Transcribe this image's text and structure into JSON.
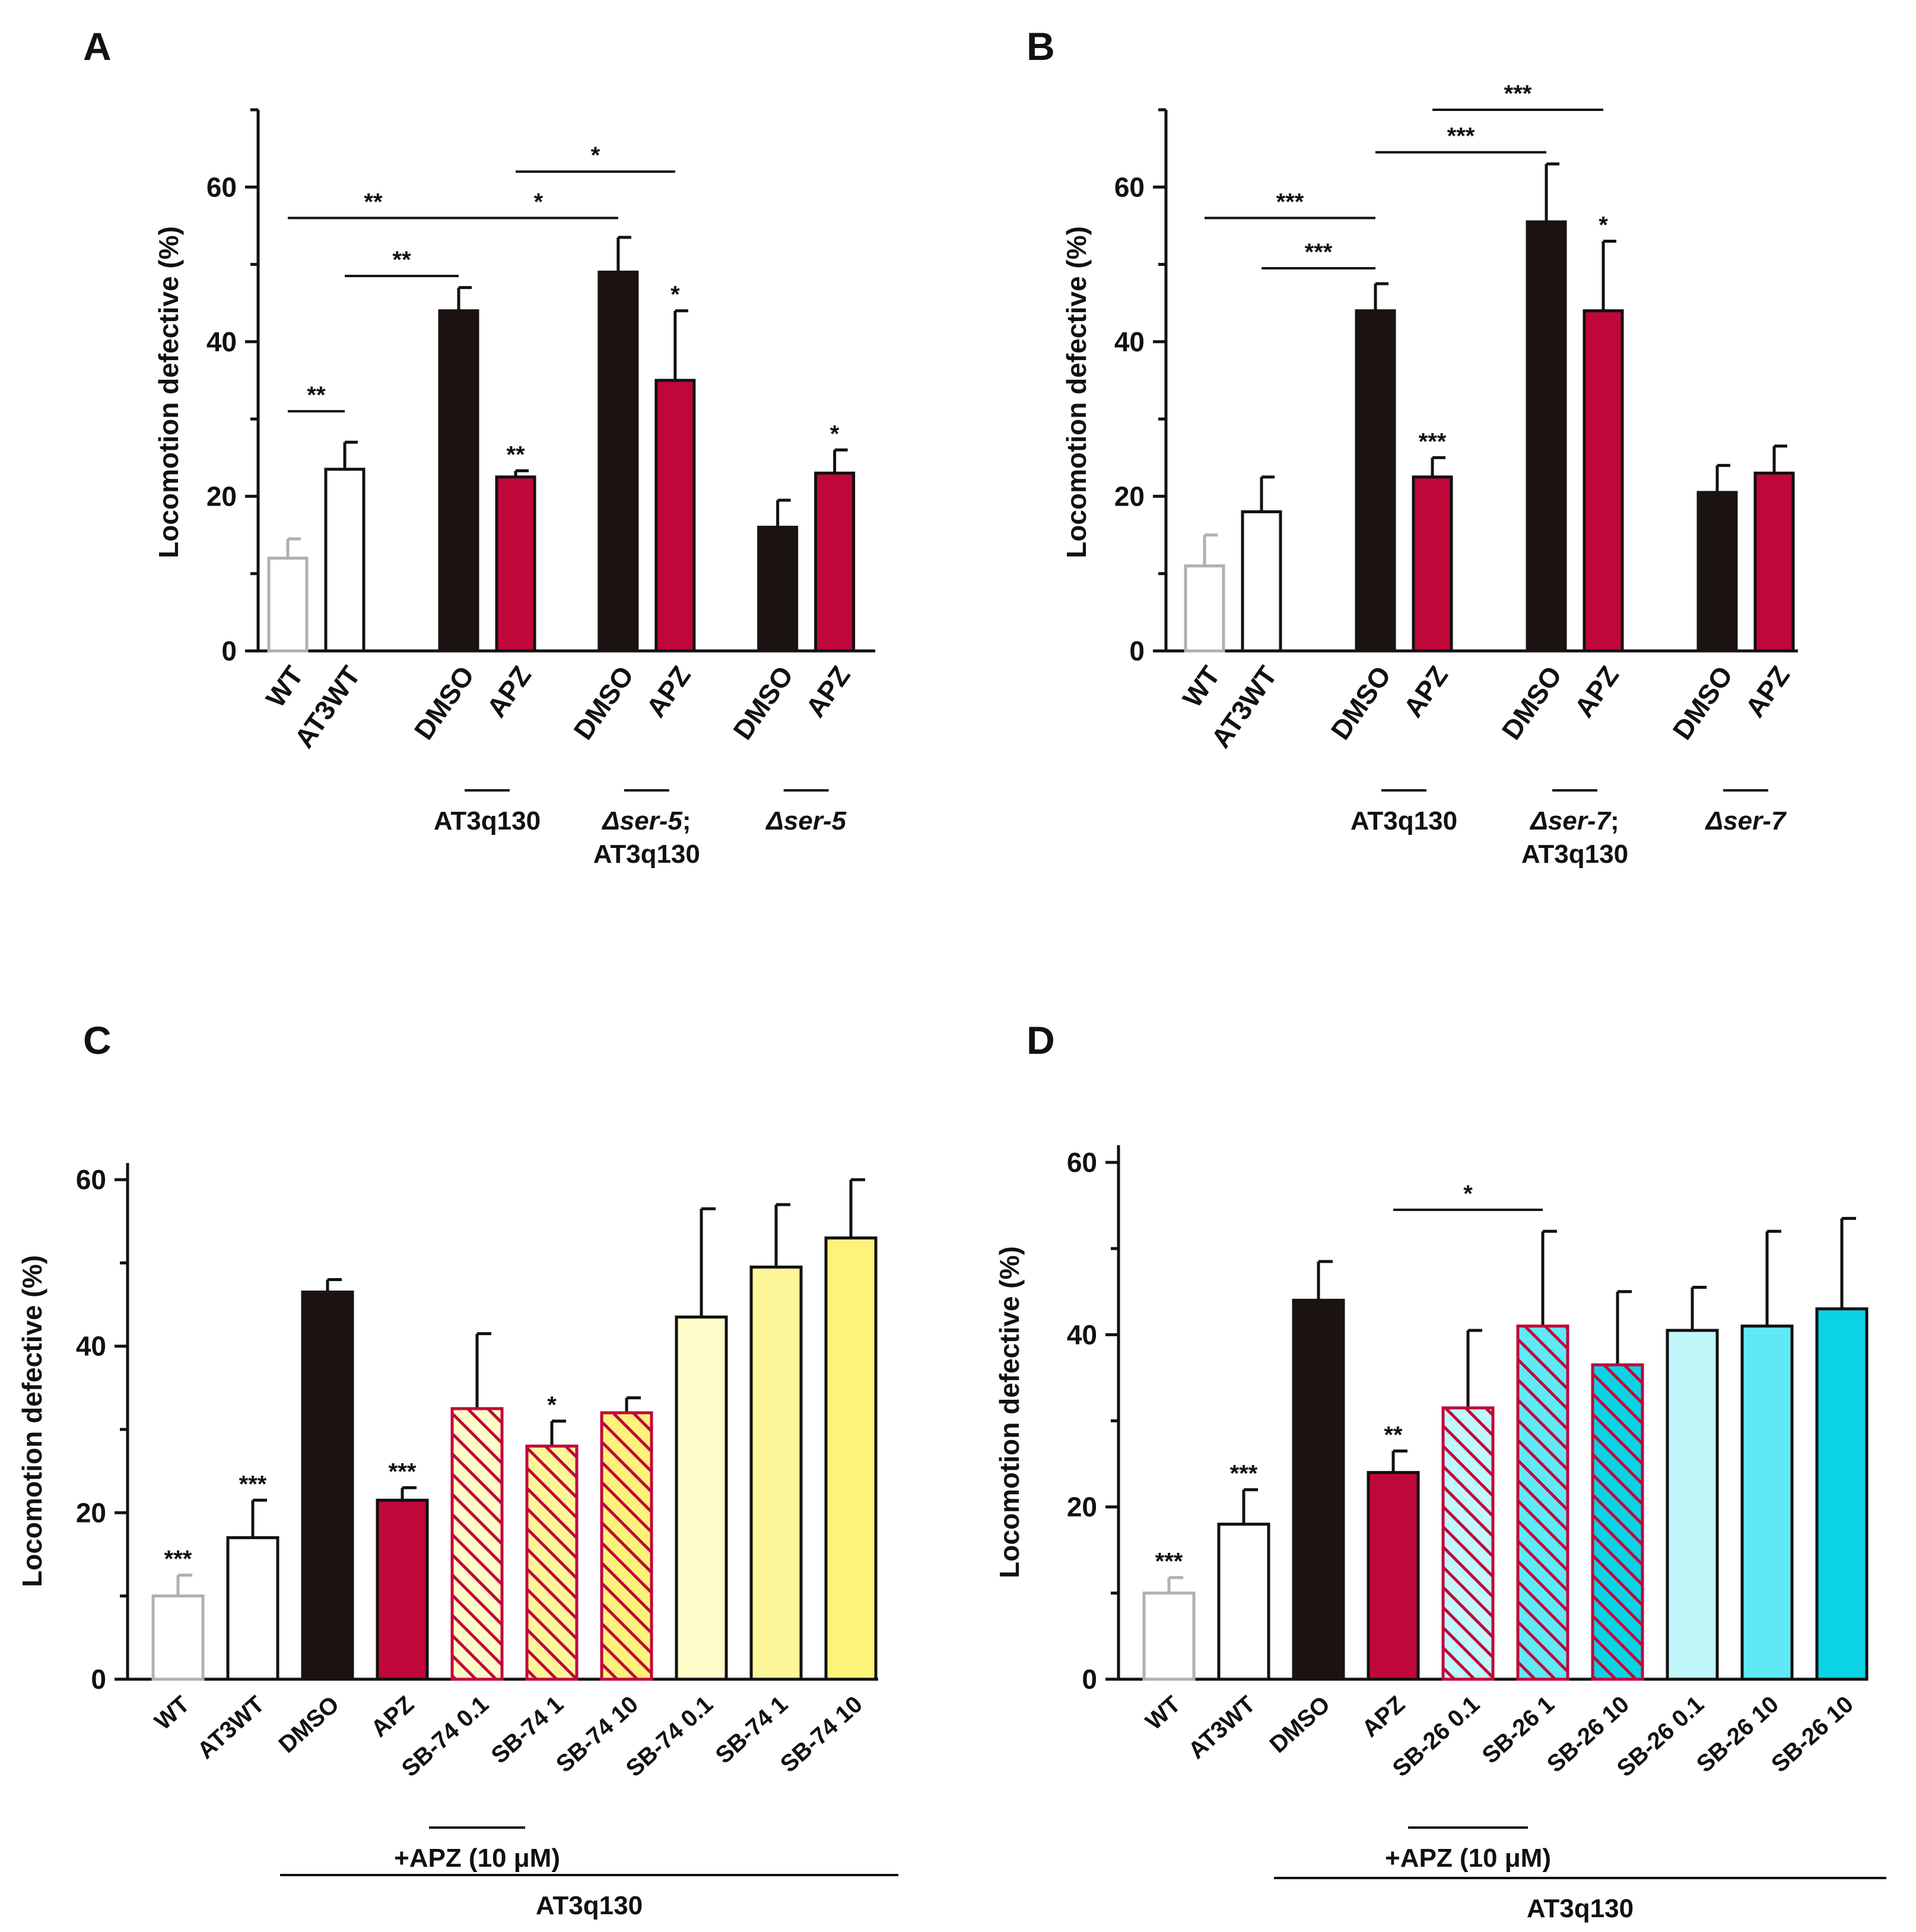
{
  "chart_data": [
    {
      "panel": "A",
      "type": "bar",
      "ylabel": "Locomotion defective (%)",
      "ylim": [
        0,
        70
      ],
      "yticks": [
        0,
        20,
        40,
        60
      ],
      "categories": [
        "WT",
        "AT3WT",
        "DMSO",
        "APZ",
        "DMSO",
        "APZ",
        "DMSO",
        "APZ"
      ],
      "values": [
        12,
        23.5,
        44,
        22.5,
        49,
        35,
        16,
        23
      ],
      "errors": [
        2.5,
        3.5,
        3,
        0.8,
        4.5,
        9,
        3.5,
        3
      ],
      "styles": [
        "gray-open",
        "open",
        "black",
        "red",
        "black",
        "red",
        "black",
        "red"
      ],
      "bar_sig": [
        "",
        "",
        "",
        "**",
        "",
        "*",
        "",
        "*"
      ],
      "groups": [
        {
          "label": "AT3q130",
          "from": 2,
          "to": 3
        },
        {
          "label": "Δser-5; AT3q130",
          "italic_part": "Δser-5",
          "rest": "; AT3q130",
          "line2": "AT3q130",
          "from": 4,
          "to": 5
        },
        {
          "label": "Δser-5",
          "italic": true,
          "from": 6,
          "to": 7
        }
      ],
      "comparisons": [
        {
          "from": 0,
          "to": 1,
          "y": 31,
          "label": "**"
        },
        {
          "from": 0,
          "to": 2,
          "y": 56,
          "label": "**"
        },
        {
          "from": 1,
          "to": 2,
          "y": 48.5,
          "label": "**"
        },
        {
          "from": 2,
          "to": 4,
          "y": 56,
          "label": "*"
        },
        {
          "from": 3,
          "to": 5,
          "y": 62,
          "label": "*"
        }
      ]
    },
    {
      "panel": "B",
      "type": "bar",
      "ylabel": "Locomotion defective (%)",
      "ylim": [
        0,
        70
      ],
      "yticks": [
        0,
        20,
        40,
        60
      ],
      "categories": [
        "WT",
        "AT3WT",
        "DMSO",
        "APZ",
        "DMSO",
        "APZ",
        "DMSO",
        "APZ"
      ],
      "values": [
        11,
        18,
        44,
        22.5,
        55.5,
        44,
        20.5,
        23
      ],
      "errors": [
        4,
        4.5,
        3.5,
        2.5,
        7.5,
        9,
        3.5,
        3.5
      ],
      "styles": [
        "gray-open",
        "open",
        "black",
        "red",
        "black",
        "red",
        "black",
        "red"
      ],
      "bar_sig": [
        "",
        "",
        "",
        "***",
        "",
        "*",
        "",
        ""
      ],
      "groups": [
        {
          "label": "AT3q130",
          "from": 2,
          "to": 3
        },
        {
          "label": "Δser-7; AT3q130",
          "italic_part": "Δser-7",
          "rest": "; AT3q130",
          "line2": "AT3q130",
          "from": 4,
          "to": 5
        },
        {
          "label": "Δser-7",
          "italic": true,
          "from": 6,
          "to": 7
        }
      ],
      "comparisons": [
        {
          "from": 0,
          "to": 2,
          "y": 56,
          "label": "***"
        },
        {
          "from": 1,
          "to": 2,
          "y": 49.5,
          "label": "***"
        },
        {
          "from": 2,
          "to": 4,
          "y": 64.5,
          "label": "***"
        },
        {
          "from": 3,
          "to": 5,
          "y": 70,
          "label": "***"
        }
      ]
    },
    {
      "panel": "C",
      "type": "bar",
      "ylabel": "Locomotion defective (%)",
      "ylim": [
        0,
        62
      ],
      "yticks": [
        0,
        20,
        40,
        60
      ],
      "categories": [
        "WT",
        "AT3WT",
        "DMSO",
        "APZ",
        "SB-74 0.1",
        "SB-74 1",
        "SB-74 10",
        "SB-74 0.1",
        "SB-74 1",
        "SB-74 10"
      ],
      "values": [
        10,
        17,
        46.5,
        21.5,
        32.5,
        28,
        32,
        43.5,
        49.5,
        53
      ],
      "errors": [
        2.5,
        4.5,
        1.5,
        1.5,
        9,
        3,
        1.8,
        13,
        7.5,
        7
      ],
      "styles": [
        "gray-open",
        "open",
        "black",
        "red",
        "hatch-y1",
        "hatch-y2",
        "hatch-y3",
        "y1",
        "y2",
        "y3"
      ],
      "bar_sig": [
        "***",
        "***",
        "",
        "***",
        "",
        "*",
        "",
        "",
        "",
        ""
      ],
      "groups": [
        {
          "label": "+APZ (10 μM)",
          "from": 3,
          "to": 5,
          "level": 1
        },
        {
          "label": "AT3q130",
          "from": 2,
          "to": 9,
          "level": 2
        }
      ],
      "comparisons": []
    },
    {
      "panel": "D",
      "type": "bar",
      "ylabel": "Locomotion defective (%)",
      "ylim": [
        0,
        62
      ],
      "yticks": [
        0,
        20,
        40,
        60
      ],
      "categories": [
        "WT",
        "AT3WT",
        "DMSO",
        "APZ",
        "SB-26 0.1",
        "SB-26 1",
        "SB-26 10",
        "SB-26 0.1",
        "SB-26 10",
        "SB-26 10"
      ],
      "values": [
        10,
        18,
        44,
        24,
        31.5,
        41,
        36.5,
        40.5,
        41,
        43
      ],
      "errors": [
        1.8,
        4,
        4.5,
        2.5,
        9,
        11,
        8.5,
        5,
        11,
        10.5
      ],
      "styles": [
        "gray-open",
        "open",
        "black",
        "red",
        "hatch-c1",
        "hatch-c2",
        "hatch-c3",
        "c1",
        "c2",
        "c3"
      ],
      "bar_sig": [
        "***",
        "***",
        "",
        "**",
        "",
        "",
        "",
        "",
        "",
        ""
      ],
      "groups": [
        {
          "label": "+APZ (10 μM)",
          "from": 3,
          "to": 5,
          "level": 1
        },
        {
          "label": "AT3q130",
          "from": 2,
          "to": 9,
          "level": 2
        }
      ],
      "comparisons": [
        {
          "from": 3,
          "to": 5,
          "y": 54.5,
          "label": "*"
        }
      ]
    }
  ],
  "colors": {
    "black": "#1a1311",
    "red": "#c0073a",
    "gray": "#b0b0b0",
    "y1": "#fefcc8",
    "y2": "#fdf79a",
    "y3": "#fdf27a",
    "c1": "#bff7fb",
    "c2": "#5fe9f5",
    "c3": "#0bd3e6"
  }
}
